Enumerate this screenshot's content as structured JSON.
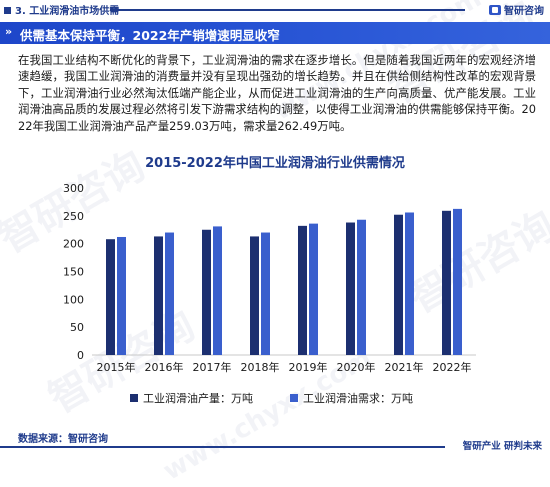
{
  "header": {
    "section_title": "3. 工业润滑油市场供需",
    "brand": "智研咨询",
    "logo_icon": "chyxx-logo-icon"
  },
  "banner": {
    "arrows": "»",
    "title": "供需基本保持平衡，2022年产销增速明显收窄"
  },
  "body": {
    "paragraph": "在我国工业结构不断优化的背景下，工业润滑油的需求在逐步增长。但是随着我国近两年的宏观经济增速趋缓，我国工业润滑油的消费量并没有呈现出强劲的增长趋势。并且在供给侧结构性改革的宏观背景下，工业润滑油行业必然淘汰低端产能企业，从而促进工业润滑油的生产向高质量、优产能发展。工业润滑油高品质的发展过程必然将引发下游需求结构的调整，以使得工业润滑油的供需能够保持平衡。2022年我国工业润滑油产品产量259.03万吨，需求量262.49万吨。"
  },
  "watermark": {
    "text": "智研咨询",
    "url": "www.chyxx.com"
  },
  "chart_data": {
    "type": "bar",
    "title": "2015-2022年中国工业润滑油行业供需情况",
    "categories": [
      "2015年",
      "2016年",
      "2017年",
      "2018年",
      "2019年",
      "2020年",
      "2021年",
      "2022年"
    ],
    "series": [
      {
        "name": "工业润滑油产量：万吨",
        "color": "#1c2f70",
        "values": [
          208,
          213,
          225,
          213,
          232,
          238,
          252,
          259.03
        ]
      },
      {
        "name": "工业润滑油需求：万吨",
        "color": "#3a5fcd",
        "values": [
          212,
          220,
          231,
          220,
          236,
          243,
          256,
          262.49
        ]
      }
    ],
    "ylim": [
      0,
      300
    ],
    "yticks": [
      0,
      50,
      100,
      150,
      200,
      250,
      300
    ],
    "grid": false,
    "legend_position": "bottom"
  },
  "footer": {
    "source": "数据来源：智研咨询",
    "slogan": "智研产业 研判未来"
  }
}
